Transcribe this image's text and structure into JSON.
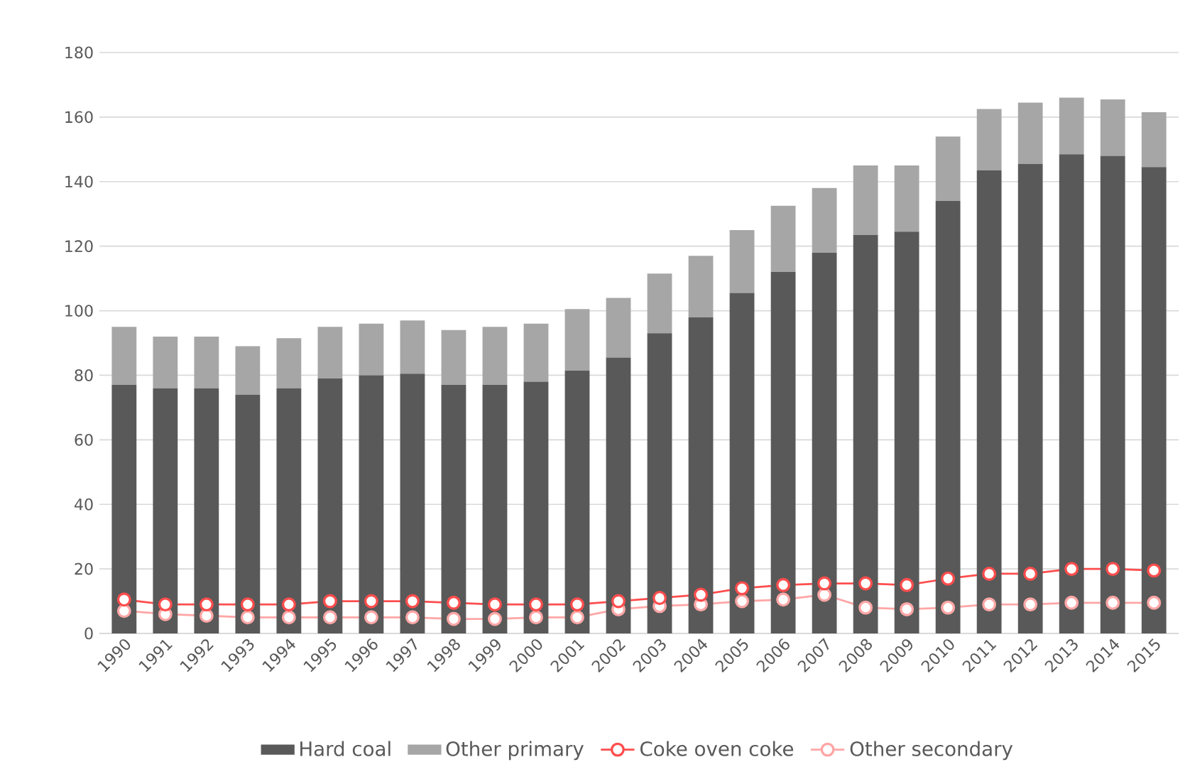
{
  "chart_data": {
    "type": "bar",
    "stacked": true,
    "categories": [
      "1990",
      "1991",
      "1992",
      "1993",
      "1994",
      "1995",
      "1996",
      "1997",
      "1998",
      "1999",
      "2000",
      "2001",
      "2002",
      "2003",
      "2004",
      "2005",
      "2006",
      "2007",
      "2008",
      "2009",
      "2010",
      "2011",
      "2012",
      "2013",
      "2014",
      "2015"
    ],
    "series": [
      {
        "name": "Hard coal",
        "color": "#595959",
        "values": [
          77,
          76,
          76,
          74,
          76,
          79,
          80,
          80.5,
          77,
          77,
          78,
          81.5,
          85.5,
          93,
          98,
          105.5,
          112,
          118,
          123.5,
          124.5,
          134,
          143.5,
          145.5,
          148.5,
          148,
          144.5
        ]
      },
      {
        "name": "Other primary",
        "color": "#a6a6a6",
        "values": [
          18,
          16,
          16,
          15,
          15.5,
          16,
          16,
          16.5,
          17,
          18,
          18,
          19,
          18.5,
          18.5,
          19,
          19.5,
          20.5,
          20,
          21.5,
          20.5,
          20,
          19,
          19,
          17.5,
          17.5,
          17
        ]
      },
      {
        "name": "Coke oven coke",
        "type": "line",
        "color": "#ff4d4d",
        "marker": "circle",
        "values": [
          10.5,
          9,
          9,
          9,
          9,
          10,
          10,
          10,
          9.5,
          9,
          9,
          9,
          10,
          11,
          12,
          14,
          15,
          15.5,
          15.5,
          15,
          17,
          18.5,
          18.5,
          20,
          20,
          19.5
        ]
      },
      {
        "name": "Other secondary",
        "type": "line",
        "color": "#ffa6a6",
        "marker": "circle",
        "values": [
          7,
          6,
          5.5,
          5,
          5,
          5,
          5,
          5,
          4.5,
          4.5,
          5,
          5,
          7.5,
          8.5,
          9,
          10,
          10.5,
          12,
          8,
          7.5,
          8,
          9,
          9,
          9.5,
          9.5,
          9.5
        ]
      }
    ],
    "ylim": [
      0,
      180
    ],
    "yticks": [
      0,
      20,
      40,
      60,
      80,
      100,
      120,
      140,
      160,
      180
    ],
    "grid": "y",
    "legend": "bottom"
  }
}
